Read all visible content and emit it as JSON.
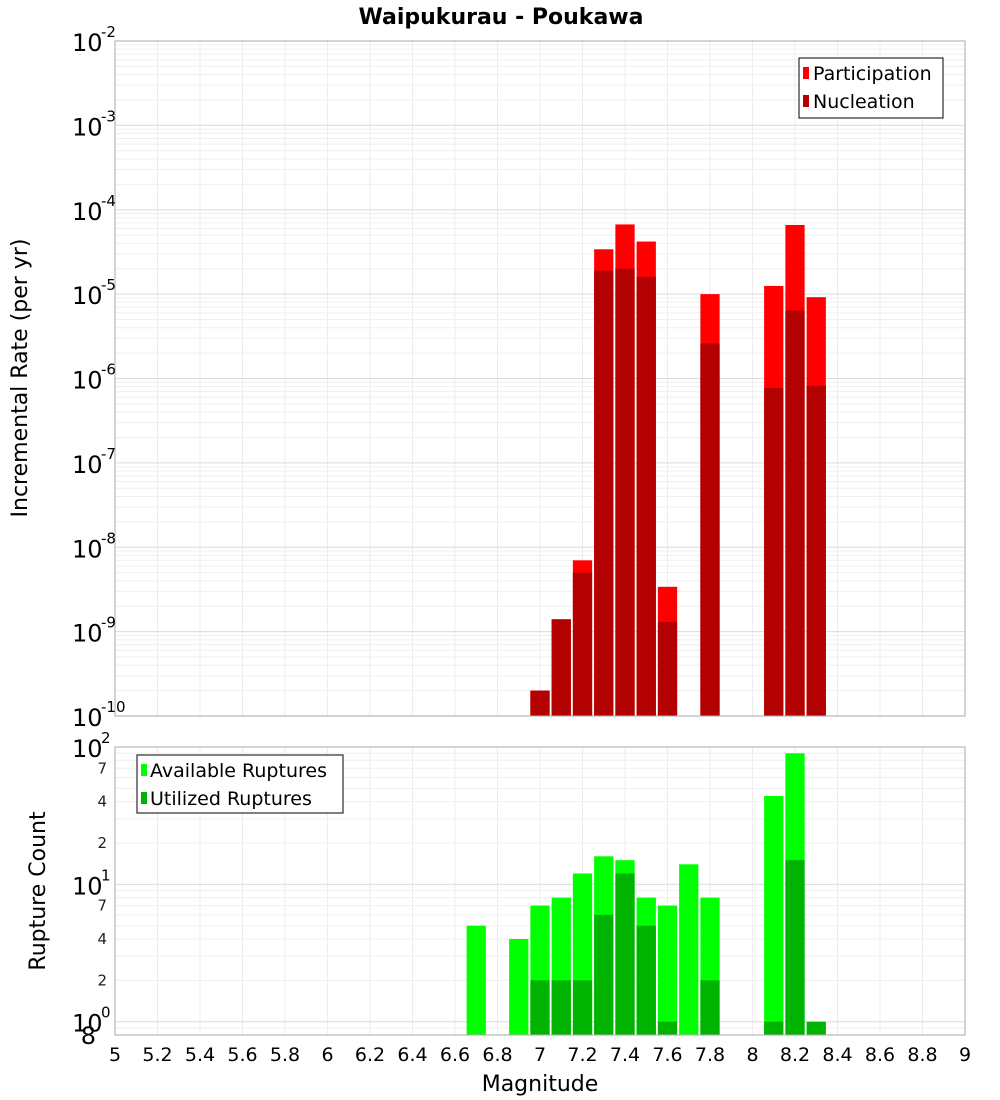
{
  "chart_data": [
    {
      "type": "bar",
      "title": "Waipukurau - Poukawa",
      "xlabel": "",
      "ylabel": "Incremental Rate (per yr)",
      "xlim": [
        5,
        9
      ],
      "ylim": [
        1e-10,
        0.01
      ],
      "yscale": "log",
      "grid": true,
      "legend_position": "top-right",
      "bin_width": 0.1,
      "series": [
        {
          "name": "Participation",
          "color": "#ff0000",
          "x": [
            7.0,
            7.1,
            7.2,
            7.3,
            7.4,
            7.5,
            7.6,
            7.8,
            8.1,
            8.2,
            8.3
          ],
          "values": [
            2e-10,
            1.4e-09,
            7e-09,
            3.4e-05,
            6.7e-05,
            4.2e-05,
            3.4e-09,
            1e-05,
            1.25e-05,
            6.6e-05,
            9.2e-06
          ]
        },
        {
          "name": "Nucleation",
          "color": "#b30000",
          "x": [
            7.0,
            7.1,
            7.2,
            7.3,
            7.4,
            7.5,
            7.6,
            7.8,
            8.1,
            8.2,
            8.3
          ],
          "values": [
            2e-10,
            1.4e-09,
            5e-09,
            1.9e-05,
            2e-05,
            1.6e-05,
            1.3e-09,
            2.6e-06,
            7.7e-07,
            6.4e-06,
            8.2e-07
          ]
        }
      ]
    },
    {
      "type": "bar",
      "title": "",
      "xlabel": "Magnitude",
      "ylabel": "Rupture Count",
      "xlim": [
        5,
        9
      ],
      "ylim": [
        0.8,
        100
      ],
      "yscale": "log",
      "grid": true,
      "legend_position": "top-left",
      "bin_width": 0.1,
      "x_ticks": [
        "5",
        "5.2",
        "5.4",
        "5.6",
        "5.8",
        "6",
        "6.2",
        "6.4",
        "6.6",
        "6.8",
        "7",
        "7.2",
        "7.4",
        "7.6",
        "7.8",
        "8",
        "8.2",
        "8.4",
        "8.6",
        "8.8",
        "9"
      ],
      "y_minor_tick_labels": [
        "2",
        "4",
        "7"
      ],
      "y_bottom_label": "8",
      "series": [
        {
          "name": "Available Ruptures",
          "color": "#00ff00",
          "x": [
            6.7,
            6.9,
            7.0,
            7.1,
            7.2,
            7.3,
            7.4,
            7.5,
            7.6,
            7.7,
            7.8,
            8.1,
            8.2
          ],
          "values": [
            5,
            4,
            7,
            8,
            12,
            16,
            15,
            8,
            7,
            14,
            8,
            44,
            90
          ]
        },
        {
          "name": "Utilized Ruptures",
          "color": "#00b300",
          "x": [
            7.0,
            7.1,
            7.2,
            7.3,
            7.4,
            7.5,
            7.6,
            7.8,
            8.1,
            8.2,
            8.3
          ],
          "values": [
            2,
            2,
            2,
            6,
            12,
            5,
            1,
            2,
            1,
            15,
            1
          ]
        }
      ]
    }
  ]
}
